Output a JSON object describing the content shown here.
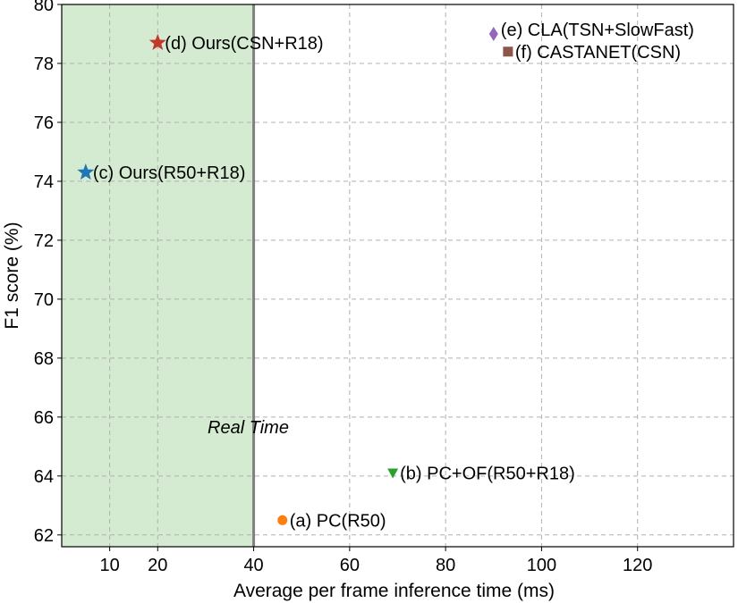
{
  "chart_data": {
    "type": "scatter",
    "xlabel": "Average per frame inference time (ms)",
    "ylabel": "F1 score (%)",
    "xlim": [
      0,
      140
    ],
    "ylim": [
      61.6,
      80
    ],
    "xticks": [
      10,
      20,
      40,
      60,
      80,
      100,
      120
    ],
    "yticks": [
      62,
      64,
      66,
      68,
      70,
      72,
      74,
      76,
      78,
      80
    ],
    "grid": true,
    "region": {
      "label": "Real Time",
      "x_range": [
        0,
        40
      ],
      "color": "#d4ebd2",
      "boundary_color": "#808080"
    },
    "points": [
      {
        "label": "(a) PC(R50)",
        "x": 46,
        "y": 62.5,
        "marker": "circle",
        "color": "#ff7f0e"
      },
      {
        "label": "(b) PC+OF(R50+R18)",
        "x": 69,
        "y": 64.1,
        "marker": "triangle-down",
        "color": "#2ca02c"
      },
      {
        "label": "(c) Ours(R50+R18)",
        "x": 5,
        "y": 74.3,
        "marker": "star",
        "color": "#1f77b4"
      },
      {
        "label": "(d) Ours(CSN+R18)",
        "x": 20,
        "y": 78.7,
        "marker": "star",
        "color": "#c0392b"
      },
      {
        "label": "(e) CLA(TSN+SlowFast)",
        "x": 90,
        "y": 79.0,
        "marker": "diamond",
        "color": "#9467bd"
      },
      {
        "label": "(f) CASTANET(CSN)",
        "x": 93,
        "y": 78.4,
        "marker": "square",
        "color": "#8c564b"
      }
    ]
  }
}
